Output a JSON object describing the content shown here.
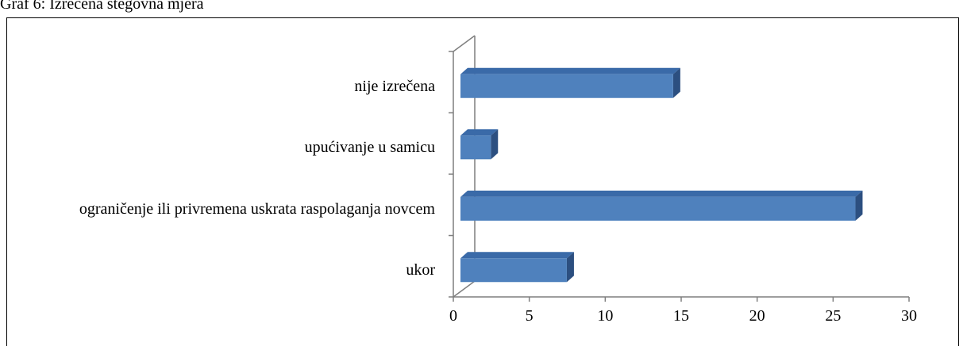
{
  "chart_data": {
    "type": "bar3d_horizontal",
    "title": "Graf 6: Izrečena stegovna mjera",
    "categories": [
      "ukor",
      "ograničenje ili privremena uskrata raspolaganja novcem",
      "upućivanje u samicu",
      "nije izrečena"
    ],
    "values": [
      7,
      26,
      2,
      14
    ],
    "color": "#4f81bd",
    "xlim": [
      0,
      30
    ],
    "xticks": [
      0,
      5,
      10,
      15,
      20,
      25,
      30
    ]
  }
}
